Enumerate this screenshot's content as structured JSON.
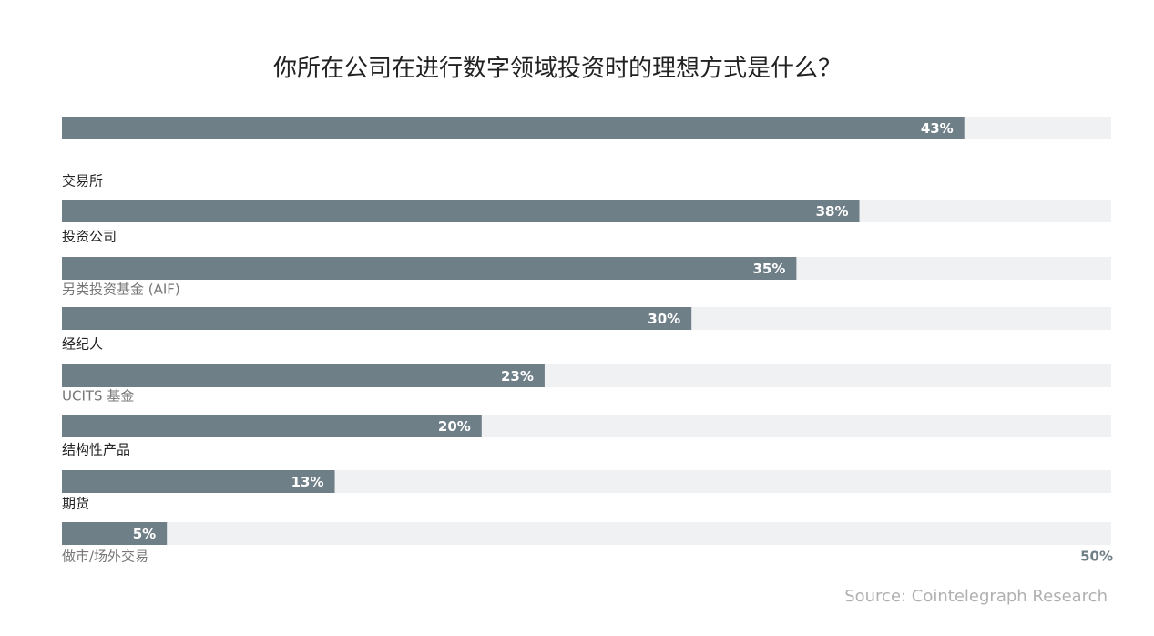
{
  "chart_data": {
    "type": "bar",
    "orientation": "horizontal",
    "title": "你所在公司在进行数字领域投资时的理想方式是什么？",
    "categories": [
      "交易所",
      "投资公司",
      "另类投资基金 (AIF)",
      "经纪人",
      "UCITS 基金",
      "结构性产品",
      "期货",
      "做市/场外交易"
    ],
    "values": [
      43,
      38,
      35,
      30,
      23,
      20,
      13,
      5
    ],
    "value_labels": [
      "43%",
      "38%",
      "35%",
      "30%",
      "23%",
      "20%",
      "13%",
      "5%"
    ],
    "color": "#6f7f88",
    "xlim": [
      0,
      50
    ],
    "xticks": [
      {
        "value": 50,
        "label": "50%"
      }
    ],
    "source": "Source: Cointelegraph Research"
  }
}
